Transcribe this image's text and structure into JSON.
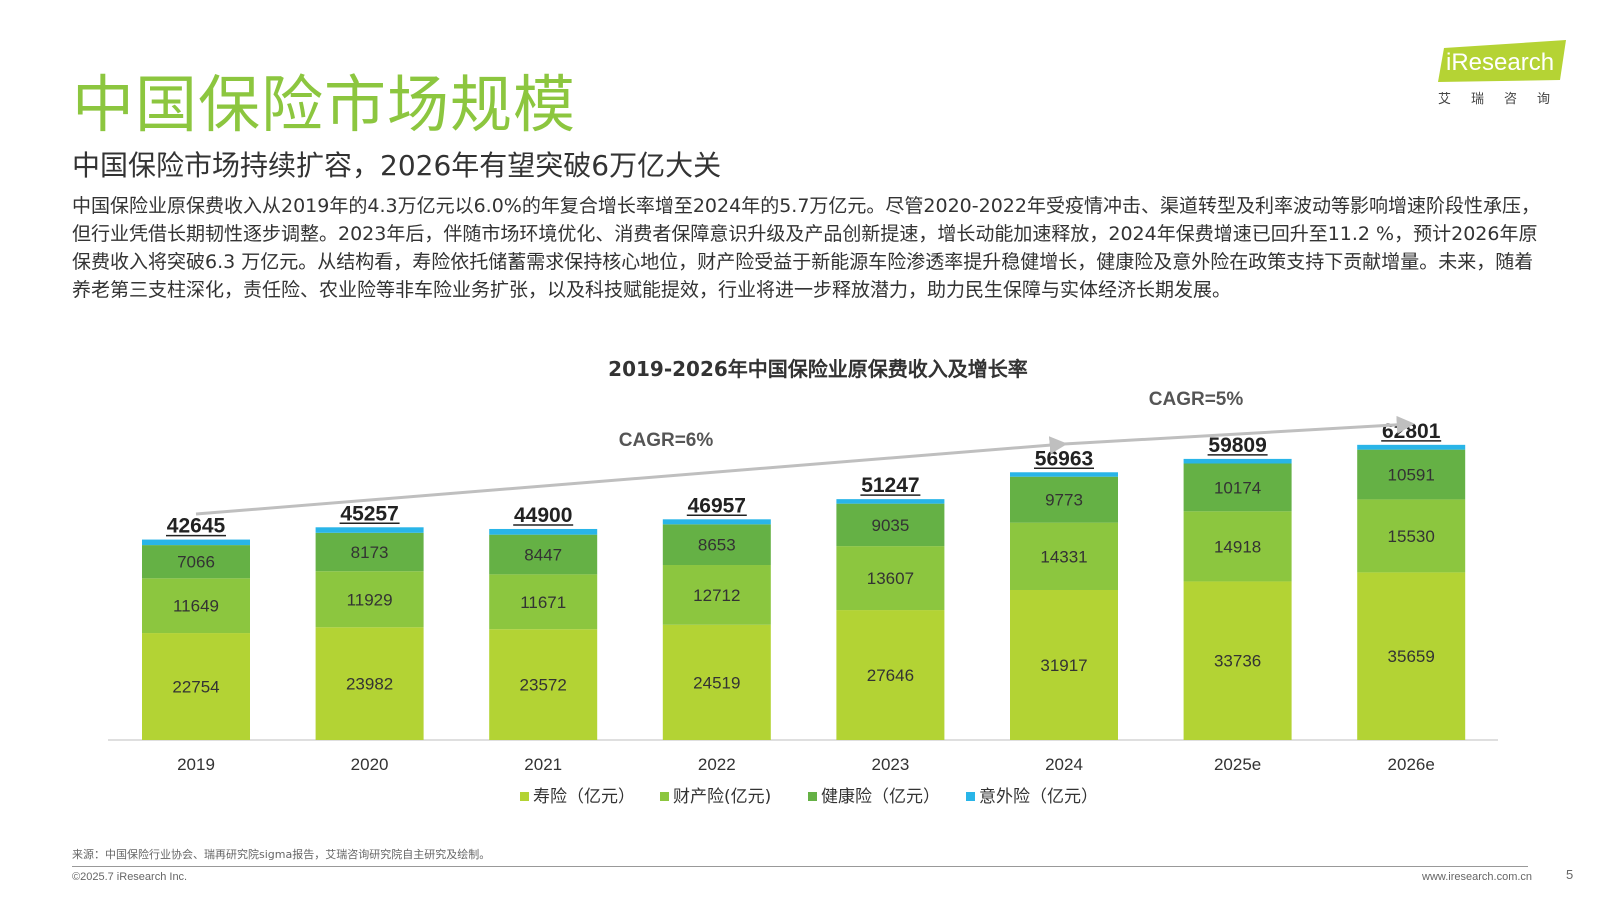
{
  "header": {
    "title": "中国保险市场规模",
    "subtitle": "中国保险市场持续扩容，2026年有望突破6万亿大关",
    "body": "中国保险业原保费收入从2019年的4.3万亿元以6.0%的年复合增长率增至2024年的5.7万亿元。尽管2020-2022年受疫情冲击、渠道转型及利率波动等影响增速阶段性承压，但行业凭借长期韧性逐步调整。2023年后，伴随市场环境优化、消费者保障意识升级及产品创新提速，增长动能加速释放，2024年保费增速已回升至11.2 %，预计2026年原保费收入将突破6.3 万亿元。从结构看，寿险依托储蓄需求保持核心地位，财产险受益于新能源车险渗透率提升稳健增长，健康险及意外险在政策支持下贡献增量。未来，随着养老第三支柱深化，责任险、农业险等非车险业务扩张，以及科技赋能提效，行业将进一步释放潜力，助力民生保障与实体经济长期发展。"
  },
  "logo": {
    "text": "iResearch",
    "cn": "艾瑞咨询",
    "accent": "#b5d334"
  },
  "chart_data": {
    "type": "bar",
    "stacked": true,
    "title": "2019-2026年中国保险业原保费收入及增长率",
    "categories": [
      "2019",
      "2020",
      "2021",
      "2022",
      "2023",
      "2024",
      "2025e",
      "2026e"
    ],
    "series": [
      {
        "name": "寿险（亿元）",
        "color": "#b3d334",
        "values": [
          22754,
          23982,
          23572,
          24519,
          27646,
          31917,
          33736,
          35659
        ]
      },
      {
        "name": "财产险(亿元)",
        "color": "#8cc63f",
        "values": [
          11649,
          11929,
          11671,
          12712,
          13607,
          14331,
          14918,
          15530
        ]
      },
      {
        "name": "健康险（亿元）",
        "color": "#65b145",
        "values": [
          7066,
          8173,
          8447,
          8653,
          9035,
          9773,
          10174,
          10591
        ]
      },
      {
        "name": "意外险（亿元）",
        "color": "#29b5e8",
        "values": [
          1176,
          1173,
          1210,
          1073,
          959,
          942,
          981,
          1021
        ]
      }
    ],
    "totals": [
      42645,
      45257,
      44900,
      46957,
      51247,
      56963,
      59809,
      62801
    ],
    "annotations": [
      {
        "text": "CAGR=6%",
        "from": "2019",
        "to": "2024"
      },
      {
        "text": "CAGR=5%",
        "from": "2024",
        "to": "2026e"
      }
    ],
    "legend_position": "bottom"
  },
  "footer": {
    "source": "来源：中国保险行业协会、瑞再研究院sigma报告，艾瑞咨询研究院自主研究及绘制。",
    "copyright": "©2025.7 iResearch Inc.",
    "url": "www.iresearch.com.cn",
    "page": "5"
  }
}
